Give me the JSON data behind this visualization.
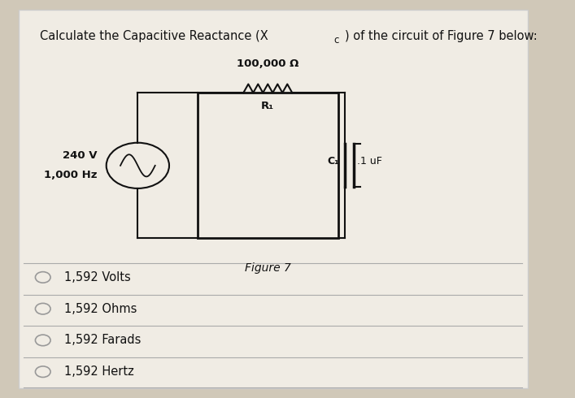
{
  "bg_color": "#d0c8b8",
  "card_color": "#e8e4dc",
  "resistor_label": "100,000 Ω",
  "r1_label": "R₁",
  "c1_label": "C₁",
  "cap_value": ".1 uF",
  "source_v": "240 V",
  "source_hz": "1,000 Hz",
  "figure_label": "Figure 7",
  "options": [
    "1,592 Volts",
    "1,592 Ohms",
    "1,592 Farads",
    "1,592 Hertz"
  ],
  "line_color": "#111111",
  "text_color": "#111111",
  "separator_color": "#aaaaaa"
}
